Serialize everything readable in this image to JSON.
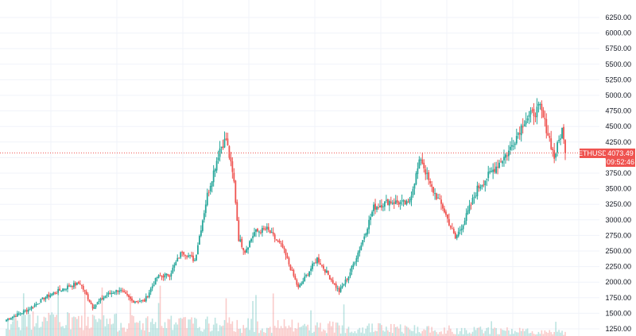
{
  "chart_data": {
    "type": "candlestick",
    "symbol": "ETHUSD",
    "last_price": "4073.49",
    "countdown": "09:52:46",
    "y_axis": {
      "scale": "linear",
      "ylim": [
        1150,
        6300
      ],
      "ticks": [
        "6250.00",
        "6000.00",
        "5750.00",
        "5500.00",
        "5250.00",
        "5000.00",
        "4750.00",
        "4500.00",
        "4250.00",
        "4000.00",
        "3750.00",
        "3500.00",
        "3250.00",
        "3000.00",
        "2750.00",
        "2500.00",
        "2250.00",
        "2000.00",
        "1750.00",
        "1500.00",
        "1250.00"
      ]
    },
    "grid": true,
    "colors": {
      "up": "#26a69a",
      "down": "#ef5350",
      "price_line": "#ef5350",
      "grid": "#f0f3fa",
      "axis_text": "#131722"
    },
    "anchors": [
      {
        "i": 0,
        "c": 1400
      },
      {
        "i": 14,
        "c": 1560
      },
      {
        "i": 25,
        "c": 1760
      },
      {
        "i": 40,
        "c": 1940
      },
      {
        "i": 47,
        "c": 1980
      },
      {
        "i": 55,
        "c": 1600
      },
      {
        "i": 64,
        "c": 1800
      },
      {
        "i": 72,
        "c": 1880
      },
      {
        "i": 80,
        "c": 1700
      },
      {
        "i": 88,
        "c": 1700
      },
      {
        "i": 96,
        "c": 2080
      },
      {
        "i": 104,
        "c": 2120
      },
      {
        "i": 112,
        "c": 2500
      },
      {
        "i": 120,
        "c": 2350
      },
      {
        "i": 128,
        "c": 3400
      },
      {
        "i": 136,
        "c": 4150
      },
      {
        "i": 140,
        "c": 4300
      },
      {
        "i": 145,
        "c": 3600
      },
      {
        "i": 148,
        "c": 2700
      },
      {
        "i": 152,
        "c": 2500
      },
      {
        "i": 158,
        "c": 2800
      },
      {
        "i": 166,
        "c": 2850
      },
      {
        "i": 176,
        "c": 2550
      },
      {
        "i": 186,
        "c": 1900
      },
      {
        "i": 198,
        "c": 2380
      },
      {
        "i": 212,
        "c": 1850
      },
      {
        "i": 218,
        "c": 2100
      },
      {
        "i": 226,
        "c": 2600
      },
      {
        "i": 234,
        "c": 3200
      },
      {
        "i": 244,
        "c": 3300
      },
      {
        "i": 256,
        "c": 3250
      },
      {
        "i": 264,
        "c": 4000
      },
      {
        "i": 270,
        "c": 3550
      },
      {
        "i": 278,
        "c": 3200
      },
      {
        "i": 286,
        "c": 2700
      },
      {
        "i": 292,
        "c": 3000
      },
      {
        "i": 300,
        "c": 3500
      },
      {
        "i": 310,
        "c": 3800
      },
      {
        "i": 320,
        "c": 4100
      },
      {
        "i": 330,
        "c": 4600
      },
      {
        "i": 340,
        "c": 4800
      },
      {
        "i": 346,
        "c": 4300
      },
      {
        "i": 349,
        "c": 4000
      },
      {
        "i": 354,
        "c": 4450
      },
      {
        "i": 356,
        "c": 4073
      }
    ],
    "volume_range": [
      0,
      480
    ]
  }
}
